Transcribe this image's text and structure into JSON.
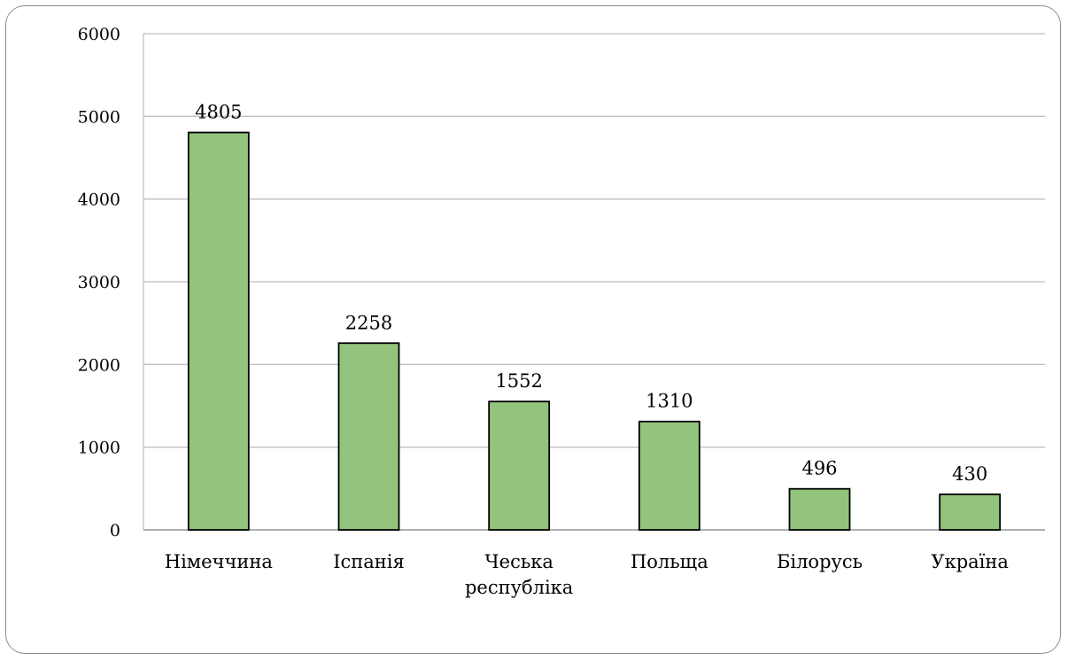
{
  "chart_data": {
    "type": "bar",
    "categories": [
      [
        "Німеччина"
      ],
      [
        "Іспанія"
      ],
      [
        "Чеська",
        "республіка"
      ],
      [
        "Польща"
      ],
      [
        "Білорусь"
      ],
      [
        "Україна"
      ]
    ],
    "values": [
      4805,
      2258,
      1552,
      1310,
      496,
      430
    ],
    "data_labels": [
      "4805",
      "2258",
      "1552",
      "1310",
      "496",
      "430"
    ],
    "yticks": [
      "0",
      "1000",
      "2000",
      "3000",
      "4000",
      "5000",
      "6000"
    ],
    "ylim": [
      0,
      6000
    ],
    "grid": true,
    "bar_color": "#93c47d",
    "bar_stroke": "#000000",
    "grid_color": "#bfbfbf"
  }
}
